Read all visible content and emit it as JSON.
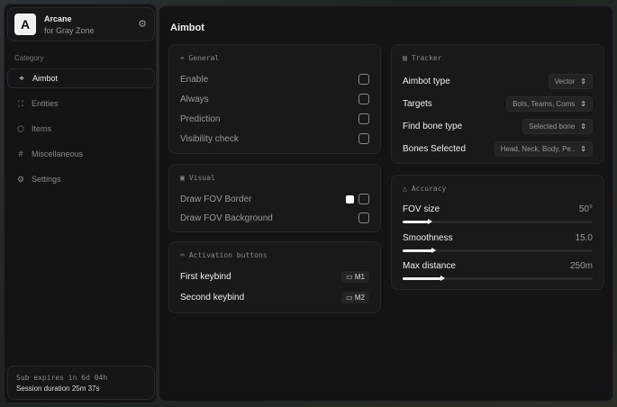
{
  "sidebar": {
    "brand": {
      "logo": "A",
      "name": "Arcane",
      "subtitle": "for Gray Zone",
      "icon": "gear-icon"
    },
    "category_label": "Category",
    "items": [
      {
        "label": "Aimbot",
        "icon": "crosshair-icon",
        "active": true
      },
      {
        "label": "Entities",
        "icon": "user-scan-icon"
      },
      {
        "label": "Items",
        "icon": "box-icon"
      },
      {
        "label": "Miscellaneous",
        "icon": "grid-icon"
      },
      {
        "label": "Settings",
        "icon": "gear-icon"
      }
    ],
    "footer": {
      "sub": "Sub expires in 6d 04h",
      "session": "Session duration 25m 37s"
    }
  },
  "main": {
    "title": "Aimbot",
    "general": {
      "title": "General",
      "rows": [
        {
          "label": "Enable",
          "checked": false
        },
        {
          "label": "Always",
          "checked": false
        },
        {
          "label": "Prediction",
          "checked": false
        },
        {
          "label": "Visibility check",
          "checked": false
        }
      ]
    },
    "visual": {
      "title": "Visual",
      "rows": [
        {
          "label": "Draw FOV Border",
          "color": "#ffffff",
          "checked": false
        },
        {
          "label": "Draw FOV Background",
          "checked": false
        }
      ]
    },
    "activation": {
      "title": "Activation buttons",
      "rows": [
        {
          "label": "First keybind",
          "key": "M1"
        },
        {
          "label": "Second keybind",
          "key": "M2"
        }
      ]
    },
    "tracker": {
      "title": "Tracker",
      "rows": [
        {
          "label": "Aimbot type",
          "value": "Vector"
        },
        {
          "label": "Targets",
          "value": "Bots, Teams, Coms"
        },
        {
          "label": "Find bone type",
          "value": "Selected bone"
        },
        {
          "label": "Bones Selected",
          "value": "Head, Neck, Body, Pe.."
        }
      ]
    },
    "accuracy": {
      "title": "Accuracy",
      "sliders": [
        {
          "label": "FOV size",
          "value": "50°",
          "fill_percent": 14
        },
        {
          "label": "Smoothness",
          "value": "15.0",
          "fill_percent": 16
        },
        {
          "label": "Max distance",
          "value": "250m",
          "fill_percent": 21
        }
      ]
    }
  }
}
